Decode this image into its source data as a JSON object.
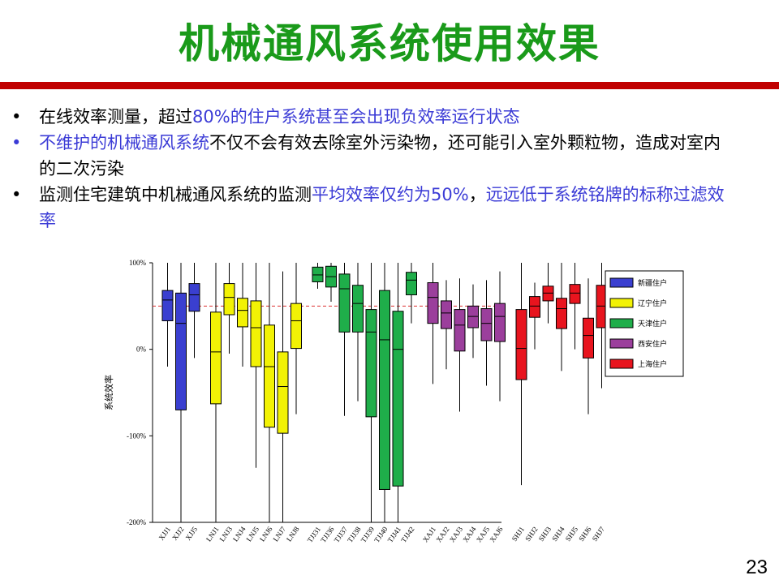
{
  "title": "机械通风系统使用效果",
  "bullets": [
    {
      "segments": [
        {
          "text": "在线效率测量，超过",
          "color": "black"
        },
        {
          "text": "80%",
          "color": "blue"
        },
        {
          "text": "的住户系统甚至会出现负效率运行状态",
          "color": "blue"
        }
      ]
    },
    {
      "segments": [
        {
          "text": "不维护的机械通风系统",
          "color": "blue"
        },
        {
          "text": "不仅不会有效去除室外污染物，还可能引入室外颗粒物，造成对室内的二次污染",
          "color": "black"
        }
      ]
    },
    {
      "segments": [
        {
          "text": "监测住宅建筑中机械通风系统的监测",
          "color": "black"
        },
        {
          "text": "平均效率仅约为50%",
          "color": "blue"
        },
        {
          "text": "，",
          "color": "black"
        },
        {
          "text": "远远低于系统铭牌的标称过滤效率",
          "color": "blue"
        }
      ]
    }
  ],
  "page_number": "23",
  "chart_data": {
    "type": "boxplot",
    "ylabel": "系统效率",
    "ylim": [
      -200,
      100
    ],
    "yticks": [
      100,
      0,
      -100,
      -200
    ],
    "ytick_labels": [
      "100%",
      "0%",
      "-100%",
      "-200%"
    ],
    "reference_line": 50,
    "legend_position": "right",
    "groups": [
      {
        "name": "新疆住户",
        "color": "#3a3fd0",
        "boxes": [
          {
            "label": "XJJ1",
            "whisker_low": -20,
            "q1": 33,
            "median": 57,
            "q3": 68,
            "whisker_high": 100
          },
          {
            "label": "XJJ2",
            "whisker_low": -200,
            "q1": -70,
            "median": 30,
            "q3": 65,
            "whisker_high": 100
          },
          {
            "label": "XJJ5",
            "whisker_low": -10,
            "q1": 44,
            "median": 63,
            "q3": 76,
            "whisker_high": 100
          }
        ]
      },
      {
        "name": "辽宁住户",
        "color": "#f2f205",
        "boxes": [
          {
            "label": "LNJ1",
            "whisker_low": -200,
            "q1": -63,
            "median": -3,
            "q3": 43,
            "whisker_high": 100
          },
          {
            "label": "LNJ3",
            "whisker_low": -5,
            "q1": 40,
            "median": 60,
            "q3": 76,
            "whisker_high": 100
          },
          {
            "label": "LNJ4",
            "whisker_low": -20,
            "q1": 26,
            "median": 45,
            "q3": 59,
            "whisker_high": 100
          },
          {
            "label": "LNJ5",
            "whisker_low": -137,
            "q1": -20,
            "median": 25,
            "q3": 56,
            "whisker_high": 100
          },
          {
            "label": "LNJ6",
            "whisker_low": -200,
            "q1": -90,
            "median": -20,
            "q3": 28,
            "whisker_high": 100
          },
          {
            "label": "LNJ7",
            "whisker_low": -200,
            "q1": -97,
            "median": -43,
            "q3": -3,
            "whisker_high": 90
          },
          {
            "label": "LNJ8",
            "whisker_low": -75,
            "q1": 1,
            "median": 33,
            "q3": 53,
            "whisker_high": 100
          }
        ]
      },
      {
        "name": "天津住户",
        "color": "#1fae4a",
        "boxes": [
          {
            "label": "TJJ31",
            "whisker_low": 70,
            "q1": 78,
            "median": 86,
            "q3": 95,
            "whisker_high": 100
          },
          {
            "label": "TJJ36",
            "whisker_low": 55,
            "q1": 72,
            "median": 84,
            "q3": 96,
            "whisker_high": 100
          },
          {
            "label": "TJJ37",
            "whisker_low": -77,
            "q1": 20,
            "median": 70,
            "q3": 87,
            "whisker_high": 100
          },
          {
            "label": "TJJ38",
            "whisker_low": -60,
            "q1": 20,
            "median": 53,
            "q3": 74,
            "whisker_high": 100
          },
          {
            "label": "TJJ39",
            "whisker_low": -200,
            "q1": -78,
            "median": 20,
            "q3": 46,
            "whisker_high": 100
          },
          {
            "label": "TJJ40",
            "whisker_low": -200,
            "q1": -162,
            "median": 11,
            "q3": 68,
            "whisker_high": 100
          },
          {
            "label": "TJJ41",
            "whisker_low": -200,
            "q1": -158,
            "median": 0,
            "q3": 44,
            "whisker_high": 100
          },
          {
            "label": "TJJ42",
            "whisker_low": 30,
            "q1": 63,
            "median": 80,
            "q3": 89,
            "whisker_high": 100
          }
        ]
      },
      {
        "name": "西安住户",
        "color": "#9b3f9c",
        "boxes": [
          {
            "label": "XAJ1",
            "whisker_low": -40,
            "q1": 30,
            "median": 60,
            "q3": 77,
            "whisker_high": 100
          },
          {
            "label": "XAJ2",
            "whisker_low": -23,
            "q1": 24,
            "median": 42,
            "q3": 56,
            "whisker_high": 80
          },
          {
            "label": "XAJ3",
            "whisker_low": -72,
            "q1": -2,
            "median": 28,
            "q3": 46,
            "whisker_high": 82
          },
          {
            "label": "XAJ4",
            "whisker_low": -10,
            "q1": 25,
            "median": 38,
            "q3": 50,
            "whisker_high": 75
          },
          {
            "label": "XAJ5",
            "whisker_low": -42,
            "q1": 10,
            "median": 30,
            "q3": 47,
            "whisker_high": 80
          },
          {
            "label": "XAJ6",
            "whisker_low": -60,
            "q1": 9,
            "median": 38,
            "q3": 53,
            "whisker_high": 90
          }
        ]
      },
      {
        "name": "上海住户",
        "color": "#e8141e",
        "boxes": [
          {
            "label": "SHJ1",
            "whisker_low": -157,
            "q1": -35,
            "median": 1,
            "q3": 46,
            "whisker_high": 100
          },
          {
            "label": "SHJ2",
            "whisker_low": 0,
            "q1": 37,
            "median": 50,
            "q3": 61,
            "whisker_high": 77
          },
          {
            "label": "SHJ3",
            "whisker_low": 30,
            "q1": 56,
            "median": 65,
            "q3": 73,
            "whisker_high": 100
          },
          {
            "label": "SHJ4",
            "whisker_low": -25,
            "q1": 24,
            "median": 47,
            "q3": 59,
            "whisker_high": 100
          },
          {
            "label": "SHJ5",
            "whisker_low": 0,
            "q1": 53,
            "median": 65,
            "q3": 75,
            "whisker_high": 100
          },
          {
            "label": "SHJ6",
            "whisker_low": -75,
            "q1": -10,
            "median": 16,
            "q3": 36,
            "whisker_high": 82
          },
          {
            "label": "SHJ7",
            "whisker_low": -45,
            "q1": 25,
            "median": 50,
            "q3": 74,
            "whisker_high": 100
          }
        ]
      }
    ]
  }
}
